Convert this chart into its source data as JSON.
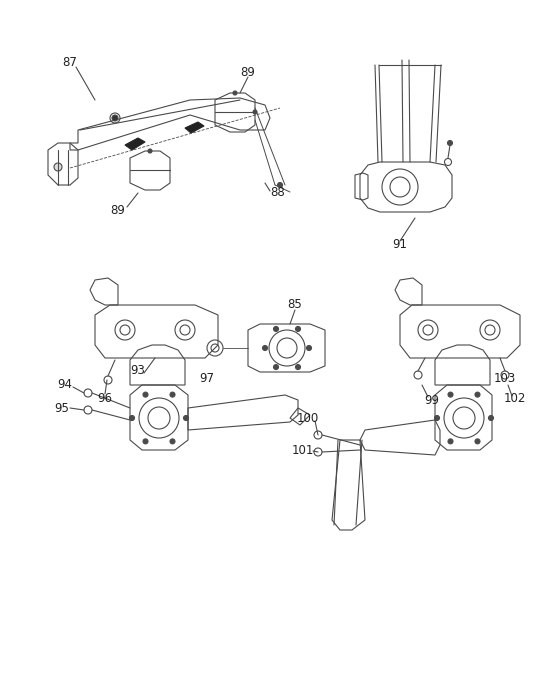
{
  "bg_color": "#ffffff",
  "line_color": "#4a4a4a",
  "label_color": "#222222",
  "label_fontsize": 8.5,
  "figsize": [
    5.33,
    6.79
  ],
  "dpi": 100,
  "xlim": [
    0,
    533
  ],
  "ylim": [
    0,
    679
  ]
}
